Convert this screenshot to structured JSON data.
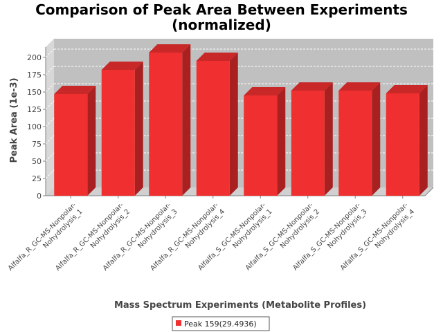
{
  "colors": {
    "bar_front": "#f03030",
    "bar_top": "#c82828",
    "bar_side": "#a82020",
    "plot_back": "#c0c0c0",
    "plot_wall": "#d8d8d8",
    "plot_floor": "#d0d0d0",
    "grid": "#ffffff",
    "axis": "#808080"
  },
  "chart_data": {
    "type": "bar",
    "title_lines": [
      "Comparison of Peak Area Between Experiments",
      "(normalized)"
    ],
    "xlabel": "Mass Spectrum Experiments (Metabolite Profiles)",
    "ylabel": "Peak Area (1e-3)",
    "ylim": [
      0,
      215
    ],
    "yticks": [
      0,
      25,
      50,
      75,
      100,
      125,
      150,
      175,
      200
    ],
    "grid": true,
    "legend_position": "bottom-center",
    "categories": [
      [
        "Alfalfa_R_GC-MS-Nonpolar-",
        "Nohydrolysis_1"
      ],
      [
        "Alfalfa_R_GC-MS-Nonpolar-",
        "Nohydrolysis_2"
      ],
      [
        "Alfalfa_R_GC-MS-Nonpolar-",
        "Nohydrolysis_3"
      ],
      [
        "Alfalfa_R_GC-MS-Nonpolar-",
        "Nohydrolysis_4"
      ],
      [
        "Alfalfa_S_GC-MS-Nonpolar-",
        "Nohydrolysis_1"
      ],
      [
        "Alfalfa_S_GC-MS-Nonpolar-",
        "Nohydrolysis_2"
      ],
      [
        "Alfalfa_S_GC-MS-Nonpolar-",
        "Nohydrolysis_3"
      ],
      [
        "Alfalfa_S_GC-MS-Nonpolar-",
        "Nohydrolysis_4"
      ]
    ],
    "series": [
      {
        "name": "Peak 159(29.4936)",
        "values": [
          147,
          182,
          207,
          195,
          145,
          152,
          152,
          148
        ]
      }
    ]
  }
}
